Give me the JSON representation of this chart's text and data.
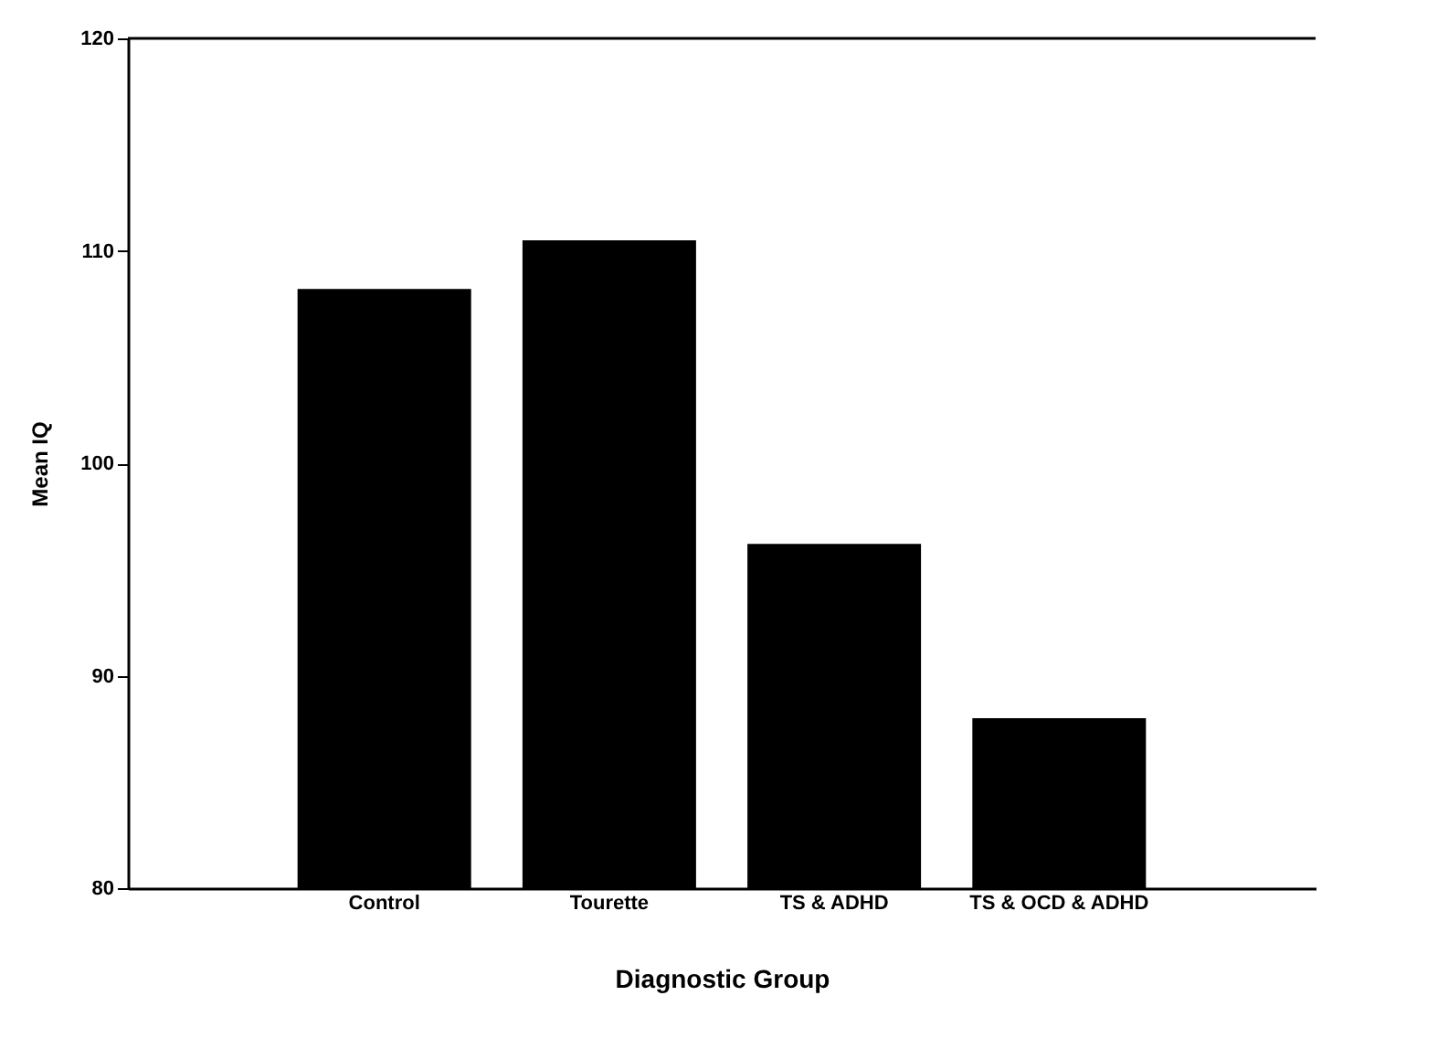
{
  "chart_data": {
    "type": "bar",
    "xlabel": "Diagnostic Group",
    "ylabel": "Mean IQ",
    "categories": [
      "Control",
      "Tourette",
      "TS & ADHD",
      "TS & OCD & ADHD"
    ],
    "values": [
      108.2,
      110.5,
      96.2,
      88.0
    ],
    "color": "#000000",
    "ylim": [
      80,
      120
    ],
    "yticks": [
      80,
      90,
      100,
      110,
      120
    ],
    "grid": false
  }
}
